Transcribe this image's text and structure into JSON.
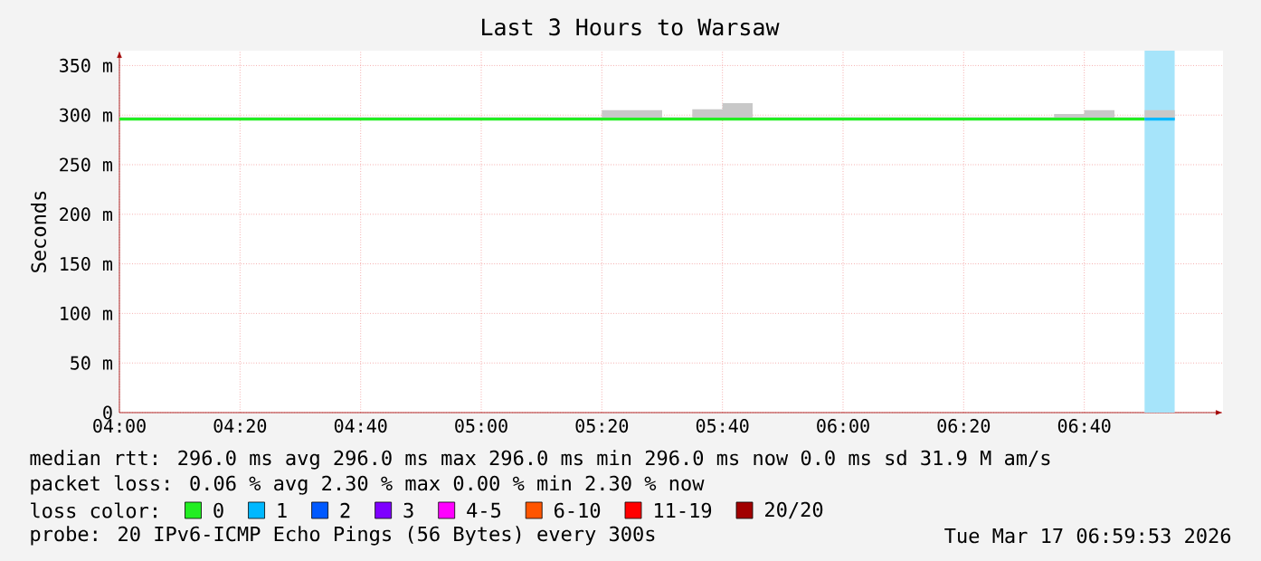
{
  "chart_data": {
    "type": "step",
    "title": "Last 3 Hours to Warsaw",
    "ylabel": "Seconds",
    "xlim": [
      4,
      7.05
    ],
    "xticks": [
      {
        "value": 4,
        "label": "04:00"
      },
      {
        "value": 4.3333,
        "label": "04:20"
      },
      {
        "value": 4.6667,
        "label": "04:40"
      },
      {
        "value": 5,
        "label": "05:00"
      },
      {
        "value": 5.3333,
        "label": "05:20"
      },
      {
        "value": 5.6667,
        "label": "05:40"
      },
      {
        "value": 6,
        "label": "06:00"
      },
      {
        "value": 6.3333,
        "label": "06:20"
      },
      {
        "value": 6.6667,
        "label": "06:40"
      }
    ],
    "ylim": [
      0,
      365
    ],
    "yticks": [
      0,
      {
        "value": 50,
        "label": "50 m"
      },
      {
        "value": 100,
        "label": "100 m"
      },
      {
        "value": 150,
        "label": "150 m"
      },
      {
        "value": 200,
        "label": "200 m"
      },
      {
        "value": 250,
        "label": "250 m"
      },
      {
        "value": 300,
        "label": "300 m"
      },
      {
        "value": 350,
        "label": "350 m"
      }
    ],
    "grid": true,
    "legend": "bottom",
    "legend_title": "loss color:",
    "bands": [
      {
        "axis": "x",
        "from": 6.8333,
        "to": 6.9167,
        "color": "#a6e4fa"
      }
    ],
    "series": [
      {
        "name": "0",
        "color": "#22ee22",
        "x": [
          4,
          4.0833,
          4.1667,
          4.25,
          4.3333,
          4.4167,
          4.5,
          4.5833,
          4.6667,
          4.75,
          4.8333,
          4.9167,
          5,
          5.0833,
          5.1667,
          5.25,
          5.3333,
          5.4167,
          5.5,
          5.5833,
          5.6667,
          5.75,
          5.8333,
          5.9167,
          6,
          6.0833,
          6.1667,
          6.25,
          6.3333,
          6.4167,
          6.5,
          6.5833,
          6.6667,
          6.75,
          6.8333
        ],
        "values": [
          296,
          296,
          296,
          296,
          296,
          296,
          296,
          296,
          296,
          296,
          296,
          296,
          296,
          296,
          296,
          296,
          296,
          296,
          296,
          296,
          296,
          296,
          296,
          296,
          296,
          296,
          296,
          296,
          296,
          296,
          296,
          296,
          296,
          296,
          296
        ],
        "lower": [
          295,
          295,
          295,
          295,
          295,
          295,
          295,
          295,
          295,
          295,
          295,
          295,
          295,
          295,
          295,
          295,
          295,
          295,
          295,
          295,
          295,
          295,
          295,
          295,
          295,
          295,
          295,
          295,
          295,
          295,
          295,
          295,
          295,
          295,
          295
        ],
        "upper": [
          298,
          298,
          298,
          298,
          298,
          298,
          298,
          298,
          298,
          298,
          298,
          298,
          298,
          298,
          298,
          298,
          305,
          305,
          298,
          306,
          312,
          298,
          298,
          298,
          298,
          298,
          298,
          298,
          298,
          298,
          298,
          301,
          305,
          298,
          298
        ]
      },
      {
        "name": "1",
        "color": "#00b8ff",
        "x": [
          6.8333,
          6.9167
        ],
        "values": [
          296,
          296
        ],
        "lower": [
          295,
          295
        ],
        "upper": [
          305,
          305
        ]
      },
      {
        "name": "2",
        "color": "#0059ff"
      },
      {
        "name": "3",
        "color": "#7e00ff"
      },
      {
        "name": "4-5",
        "color": "#ff00ff"
      },
      {
        "name": "6-10",
        "color": "#ff5500"
      },
      {
        "name": "11-19",
        "color": "#ff0000"
      },
      {
        "name": "20/20",
        "color": "#a10000"
      }
    ],
    "annotations": [
      "median rtt: 296.0 ms avg 296.0 ms max 296.0 ms min 296.0 ms now 0.0 ms sd 31.9 M am/s",
      "packet loss: 0.06 % avg 2.30 % max 0.00 % min 2.30 % now",
      "probe: 20 IPv6-ICMP Echo Pings (56 Bytes) every 300s",
      "Tue Mar 17 06:59:53 2026"
    ]
  }
}
